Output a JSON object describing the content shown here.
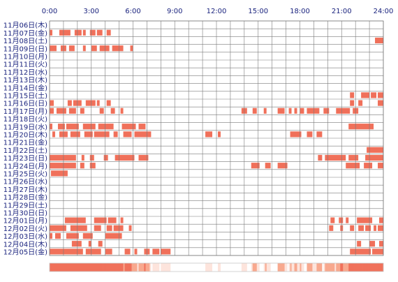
{
  "chart_data": {
    "type": "heatmap",
    "title": "",
    "xlabel": "",
    "ylabel": "",
    "x_range_hours": [
      0,
      24
    ],
    "x_tick_labels": [
      "0:00",
      "3:00",
      "6:00",
      "9:00",
      "12:00",
      "15:00",
      "18:00",
      "21:00",
      "24:00"
    ],
    "grid": true,
    "row_labels": [
      "11月06日(木)",
      "11月07日(金)",
      "11月08日(土)",
      "11月09日(日)",
      "11月10日(月)",
      "11月11日(火)",
      "11月12日(水)",
      "11月13日(木)",
      "11月14日(金)",
      "11月15日(土)",
      "11月16日(日)",
      "11月17日(月)",
      "11月18日(火)",
      "11月19日(水)",
      "11月20日(木)",
      "11月21日(金)",
      "11月22日(土)",
      "11月23日(日)",
      "11月24日(月)",
      "11月25日(火)",
      "11月26日(水)",
      "11月27日(木)",
      "11月28日(金)",
      "11月29日(土)",
      "11月30日(日)",
      "12月01日(月)",
      "12月02日(火)",
      "12月03日(水)",
      "12月04日(木)",
      "12月05日(金)"
    ],
    "activity_hours": [
      [],
      [
        [
          0,
          0.2
        ],
        [
          0.7,
          1.5
        ],
        [
          1.8,
          2.3
        ],
        [
          2.4,
          2.6
        ],
        [
          2.9,
          3.3
        ],
        [
          3.4,
          3.8
        ],
        [
          4.1,
          4.4
        ]
      ],
      [
        [
          23.4,
          24
        ]
      ],
      [
        [
          0,
          0.5
        ],
        [
          0.8,
          1.2
        ],
        [
          1.4,
          1.8
        ],
        [
          2.4,
          2.6
        ],
        [
          3,
          3.4
        ],
        [
          3.6,
          4.3
        ],
        [
          4.5,
          5.3
        ],
        [
          5.8,
          6
        ]
      ],
      [],
      [],
      [],
      [],
      [],
      [
        [
          21.6,
          21.9
        ],
        [
          22.4,
          23
        ],
        [
          23.1,
          23.5
        ],
        [
          23.6,
          24
        ]
      ],
      [
        [
          0,
          0.3
        ],
        [
          1.3,
          1.6
        ],
        [
          1.7,
          2.3
        ],
        [
          2.6,
          3.3
        ],
        [
          3.4,
          3.6
        ],
        [
          4.1,
          4.4
        ],
        [
          21.6,
          21.9
        ],
        [
          22.2,
          22.5
        ],
        [
          23.6,
          24
        ]
      ],
      [
        [
          0,
          0.3
        ],
        [
          0.5,
          1.2
        ],
        [
          1.4,
          1.9
        ],
        [
          2.2,
          2.5
        ],
        [
          3.6,
          3.9
        ],
        [
          4.4,
          4.7
        ],
        [
          5.1,
          5.3
        ],
        [
          13.8,
          14.2
        ],
        [
          14.6,
          14.9
        ],
        [
          15.4,
          15.6
        ],
        [
          16.4,
          16.9
        ],
        [
          17.2,
          17.4
        ],
        [
          17.6,
          17.8
        ],
        [
          18,
          18.3
        ],
        [
          18.5,
          19.4
        ],
        [
          19.7,
          20.1
        ],
        [
          20.6,
          21.6
        ],
        [
          21.8,
          22.2
        ]
      ],
      [],
      [
        [
          0,
          0.2
        ],
        [
          0.6,
          1.1
        ],
        [
          1.2,
          2.1
        ],
        [
          2.4,
          3.3
        ],
        [
          3.5,
          4.6
        ],
        [
          5.2,
          6.2
        ],
        [
          6.4,
          6.9
        ],
        [
          21.5,
          23.3
        ]
      ],
      [
        [
          0.2,
          0.4
        ],
        [
          0.7,
          1.3
        ],
        [
          1.5,
          2.2
        ],
        [
          2.5,
          3.1
        ],
        [
          3.2,
          4.3
        ],
        [
          4.6,
          4.9
        ],
        [
          5.3,
          5.9
        ],
        [
          6.1,
          7.3
        ],
        [
          11.2,
          11.7
        ],
        [
          12.1,
          12.3
        ],
        [
          17.3,
          18.1
        ],
        [
          18.5,
          18.9
        ],
        [
          19.2,
          19.6
        ]
      ],
      [],
      [
        [
          22.8,
          24
        ]
      ],
      [
        [
          0,
          1.9
        ],
        [
          2.3,
          2.5
        ],
        [
          2.9,
          3.2
        ],
        [
          3.9,
          4.2
        ],
        [
          4.7,
          6.1
        ],
        [
          6.4,
          7.1
        ],
        [
          19.3,
          19.6
        ],
        [
          19.8,
          21.3
        ],
        [
          21.5,
          22.2
        ],
        [
          22.7,
          24
        ]
      ],
      [
        [
          0,
          1.9
        ],
        [
          2.2,
          2.5
        ],
        [
          2.9,
          3.3
        ],
        [
          14.5,
          15.1
        ],
        [
          15.5,
          15.9
        ],
        [
          16.4,
          17.1
        ],
        [
          21.3,
          22.3
        ],
        [
          22.6,
          23.2
        ],
        [
          23.6,
          24
        ]
      ],
      [
        [
          0.1,
          1.3
        ]
      ],
      [],
      [],
      [],
      [],
      [],
      [
        [
          1.1,
          2.6
        ],
        [
          3.2,
          4.1
        ],
        [
          4.2,
          4.8
        ],
        [
          5.1,
          5.3
        ],
        [
          20.2,
          20.5
        ],
        [
          20.8,
          21.1
        ],
        [
          21.3,
          21.5
        ],
        [
          22.1,
          23.2
        ],
        [
          23.7,
          24
        ]
      ],
      [
        [
          0,
          1.2
        ],
        [
          1.5,
          2.7
        ],
        [
          3.2,
          3.7
        ],
        [
          4.1,
          4.5
        ],
        [
          4.6,
          5.3
        ],
        [
          5.7,
          5.9
        ],
        [
          20.1,
          20.4
        ],
        [
          20.9,
          21.1
        ],
        [
          21.6,
          21.9
        ],
        [
          22.2,
          22.6
        ],
        [
          22.7,
          23.1
        ],
        [
          23.3,
          23.5
        ],
        [
          23.6,
          24
        ]
      ],
      [
        [
          0,
          0.2
        ],
        [
          0.4,
          0.8
        ],
        [
          1.2,
          2.1
        ],
        [
          2.4,
          3.1
        ],
        [
          4,
          5.2
        ]
      ],
      [
        [
          1.6,
          2.3
        ],
        [
          2.8,
          3
        ],
        [
          3.5,
          3.8
        ],
        [
          22.1,
          22.4
        ],
        [
          23,
          23.4
        ],
        [
          23.7,
          24
        ]
      ],
      [
        [
          0,
          2.4
        ],
        [
          2.6,
          3.7
        ],
        [
          4,
          4.5
        ],
        [
          5.4,
          5.8
        ],
        [
          6.1,
          6.3
        ],
        [
          6.8,
          7.2
        ],
        [
          7.4,
          7.9
        ],
        [
          8,
          8.7
        ],
        [
          21.6,
          23.1
        ],
        [
          23.2,
          24
        ]
      ]
    ],
    "summary_strip_colors": [
      "#ffffff",
      "#fde4dc",
      "#f8a88e",
      "#f0705a"
    ]
  },
  "colors": {
    "activity": "#f0705a",
    "grid": "#7a7a7a",
    "row_label": "#1a237e",
    "axis_label": "#1a237e",
    "background": "#ffffff"
  }
}
